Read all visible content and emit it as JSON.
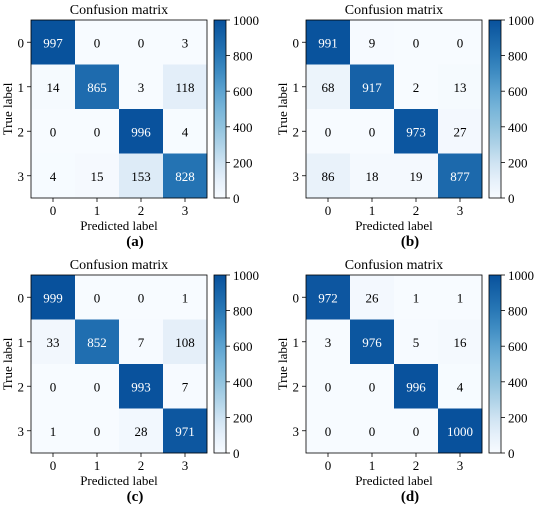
{
  "chart_data": [
    {
      "type": "heatmap",
      "panel_label": "(a)",
      "title": "Confusion matrix",
      "xlabel": "Predicted label",
      "ylabel": "True label",
      "x_ticks": [
        "0",
        "1",
        "2",
        "3"
      ],
      "y_ticks": [
        "0",
        "1",
        "2",
        "3"
      ],
      "values": [
        [
          997,
          0,
          0,
          3
        ],
        [
          14,
          865,
          3,
          118
        ],
        [
          0,
          0,
          996,
          4
        ],
        [
          4,
          15,
          153,
          828
        ]
      ],
      "colorbar": {
        "range": [
          0,
          1000
        ],
        "ticks": [
          0,
          200,
          400,
          600,
          800,
          1000
        ],
        "colormap": [
          "#f7fbff",
          "#08519c"
        ]
      }
    },
    {
      "type": "heatmap",
      "panel_label": "(b)",
      "title": "Confusion matrix",
      "xlabel": "Predicted label",
      "ylabel": "True label",
      "x_ticks": [
        "0",
        "1",
        "2",
        "3"
      ],
      "y_ticks": [
        "0",
        "1",
        "2",
        "3"
      ],
      "values": [
        [
          991,
          9,
          0,
          0
        ],
        [
          68,
          917,
          2,
          13
        ],
        [
          0,
          0,
          973,
          27
        ],
        [
          86,
          18,
          19,
          877
        ]
      ],
      "colorbar": {
        "range": [
          0,
          1000
        ],
        "ticks": [
          0,
          200,
          400,
          600,
          800,
          1000
        ],
        "colormap": [
          "#f7fbff",
          "#08519c"
        ]
      }
    },
    {
      "type": "heatmap",
      "panel_label": "(c)",
      "title": "Confusion matrix",
      "xlabel": "Predicted label",
      "ylabel": "True label",
      "x_ticks": [
        "0",
        "1",
        "2",
        "3"
      ],
      "y_ticks": [
        "0",
        "1",
        "2",
        "3"
      ],
      "values": [
        [
          999,
          0,
          0,
          1
        ],
        [
          33,
          852,
          7,
          108
        ],
        [
          0,
          0,
          993,
          7
        ],
        [
          1,
          0,
          28,
          971
        ]
      ],
      "colorbar": {
        "range": [
          0,
          1000
        ],
        "ticks": [
          0,
          200,
          400,
          600,
          800,
          1000
        ],
        "colormap": [
          "#f7fbff",
          "#08519c"
        ]
      }
    },
    {
      "type": "heatmap",
      "panel_label": "(d)",
      "title": "Confusion matrix",
      "xlabel": "Predicted label",
      "ylabel": "True label",
      "x_ticks": [
        "0",
        "1",
        "2",
        "3"
      ],
      "y_ticks": [
        "0",
        "1",
        "2",
        "3"
      ],
      "values": [
        [
          972,
          26,
          1,
          1
        ],
        [
          3,
          976,
          5,
          16
        ],
        [
          0,
          0,
          996,
          4
        ],
        [
          0,
          0,
          0,
          1000
        ]
      ],
      "colorbar": {
        "range": [
          0,
          1000
        ],
        "ticks": [
          0,
          200,
          400,
          600,
          800,
          1000
        ],
        "colormap": [
          "#f7fbff",
          "#08519c"
        ]
      }
    }
  ]
}
